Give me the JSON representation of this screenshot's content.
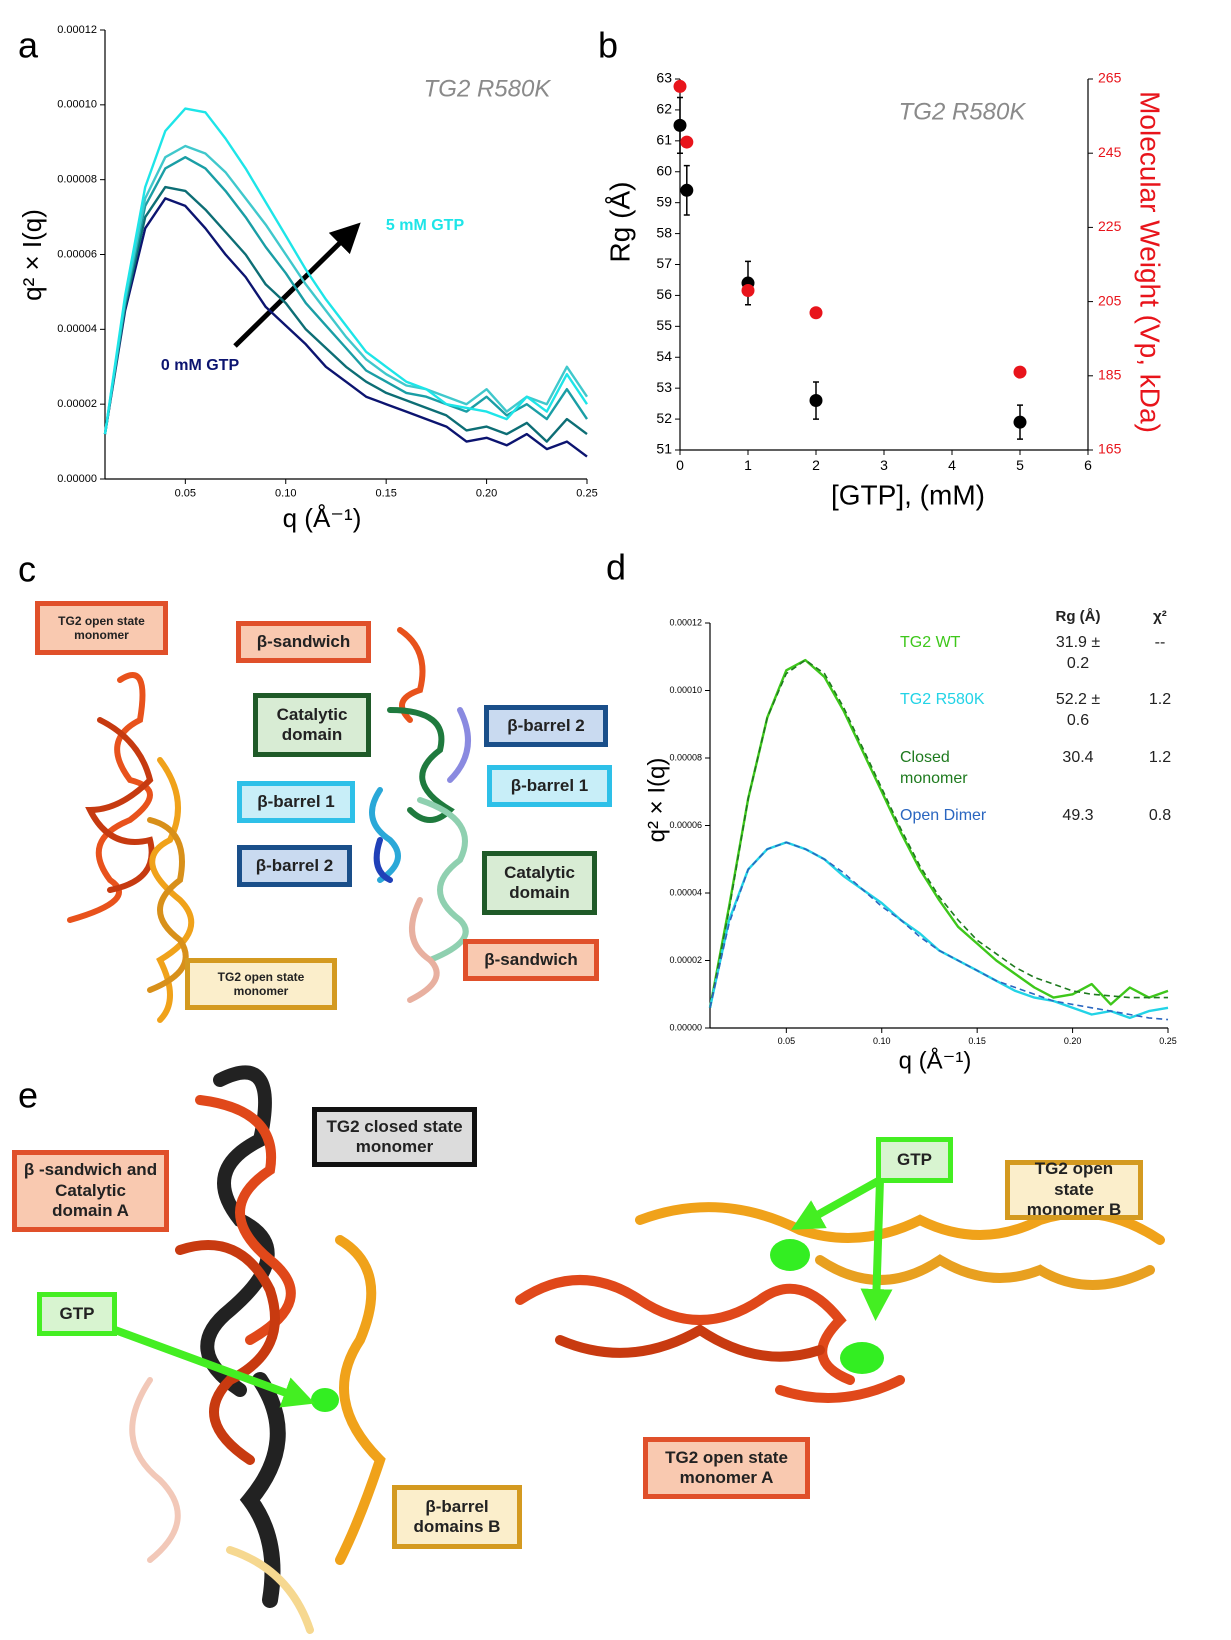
{
  "panel_labels": [
    "a",
    "b",
    "c",
    "d",
    "e"
  ],
  "chart_data": [
    {
      "type": "line",
      "x_label": "q (Å⁻¹)",
      "y_label": "q² × I(q)",
      "annotations": [
        "TG2 R580K",
        "5 mM GTP",
        "0 mM GTP"
      ],
      "x": [
        0.01,
        0.02,
        0.03,
        0.04,
        0.05,
        0.06,
        0.07,
        0.08,
        0.09,
        0.1,
        0.11,
        0.12,
        0.13,
        0.14,
        0.15,
        0.16,
        0.17,
        0.18,
        0.19,
        0.2,
        0.21,
        0.22,
        0.23,
        0.24,
        0.25
      ],
      "series": [
        {
          "color": "#0c1470",
          "values": [
            1.2e-05,
            4.5e-05,
            6.7e-05,
            7.5e-05,
            7.3e-05,
            6.7e-05,
            6e-05,
            5.4e-05,
            4.6e-05,
            4.1e-05,
            3.6e-05,
            3e-05,
            2.6e-05,
            2.2e-05,
            2e-05,
            1.8e-05,
            1.6e-05,
            1.4e-05,
            1e-05,
            1.1e-05,
            9e-06,
            1.2e-05,
            8e-06,
            1e-05,
            6e-06
          ]
        },
        {
          "color": "#0d6e75",
          "values": [
            1.2e-05,
            4.6e-05,
            7e-05,
            7.8e-05,
            7.7e-05,
            7.2e-05,
            6.6e-05,
            6e-05,
            5.2e-05,
            4.7e-05,
            4e-05,
            3.5e-05,
            3e-05,
            2.6e-05,
            2.3e-05,
            2.1e-05,
            1.9e-05,
            1.7e-05,
            1.3e-05,
            1.4e-05,
            1.2e-05,
            1.5e-05,
            1e-05,
            1.6e-05,
            1.2e-05
          ]
        },
        {
          "color": "#1a9ea5",
          "values": [
            1.2e-05,
            4.7e-05,
            7.3e-05,
            8.3e-05,
            8.6e-05,
            8.3e-05,
            7.7e-05,
            7e-05,
            6.2e-05,
            5.5e-05,
            4.7e-05,
            4.1e-05,
            3.5e-05,
            2.9e-05,
            2.6e-05,
            2.3e-05,
            2.2e-05,
            2e-05,
            1.8e-05,
            2.2e-05,
            1.7e-05,
            2e-05,
            1.6e-05,
            2.4e-05,
            1.6e-05
          ]
        },
        {
          "color": "#40c8cc",
          "values": [
            1.2e-05,
            4.8e-05,
            7.5e-05,
            8.6e-05,
            8.9e-05,
            8.7e-05,
            8.2e-05,
            7.5e-05,
            6.8e-05,
            6e-05,
            5.2e-05,
            4.5e-05,
            3.8e-05,
            3.2e-05,
            2.8e-05,
            2.5e-05,
            2.4e-05,
            2.2e-05,
            2e-05,
            2.4e-05,
            1.8e-05,
            2.2e-05,
            2e-05,
            3e-05,
            2.2e-05
          ]
        },
        {
          "color": "#1ee5e8",
          "values": [
            1.2e-05,
            4.9e-05,
            7.8e-05,
            9.3e-05,
            9.9e-05,
            9.8e-05,
            9.1e-05,
            8.3e-05,
            7.4e-05,
            6.5e-05,
            5.6e-05,
            4.8e-05,
            4.1e-05,
            3.4e-05,
            3e-05,
            2.6e-05,
            2.4e-05,
            2e-05,
            1.9e-05,
            1.8e-05,
            1.6e-05,
            2.2e-05,
            1.8e-05,
            2.8e-05,
            2e-05
          ]
        }
      ],
      "xlim": [
        0.01,
        0.25
      ],
      "xticks": [
        0.05,
        {
          "value": 0.1,
          "label": "0.10"
        },
        0.15,
        {
          "value": 0.2,
          "label": "0.20"
        },
        0.25
      ],
      "ylim": [
        0,
        0.00012
      ],
      "yticks": [
        {
          "value": 0,
          "label": "0.00000"
        },
        {
          "value": 2e-05,
          "label": "0.00002"
        },
        {
          "value": 4e-05,
          "label": "0.00004"
        },
        {
          "value": 6e-05,
          "label": "0.00006"
        },
        {
          "value": 8e-05,
          "label": "0.00008"
        },
        {
          "value": 0.0001,
          "label": "0.00010"
        },
        {
          "value": 0.00012,
          "label": "0.00012"
        }
      ]
    },
    {
      "type": "scatter",
      "x_label": "[GTP], (mM)",
      "y_label": "Rg (Å)",
      "y2_label": "Molecular Weight (Vp, kDa)",
      "annotations": [
        "TG2 R580K"
      ],
      "x": [
        0,
        0.1,
        1,
        2,
        5
      ],
      "series": [
        {
          "color": "#000000",
          "values": [
            61.5,
            59.4,
            56.4,
            52.6,
            51.9
          ],
          "errors": [
            0.9,
            0.8,
            0.7,
            0.6,
            0.55
          ]
        },
        {
          "color": "#e8141b",
          "axis": "y2",
          "values": [
            263,
            248,
            208,
            202,
            186
          ]
        }
      ],
      "xlim": [
        0,
        6
      ],
      "xticks": [
        0,
        1,
        2,
        3,
        4,
        5,
        6
      ],
      "ylim": [
        51,
        63
      ],
      "yticks": [
        51,
        52,
        53,
        54,
        55,
        56,
        57,
        58,
        59,
        60,
        61,
        62,
        63
      ],
      "y2lim": [
        165,
        265
      ],
      "y2ticks": [
        165,
        185,
        205,
        225,
        245,
        265
      ]
    },
    {
      "type": "line",
      "x_label": "q (Å⁻¹)",
      "y_label": "q² × I(q)",
      "x": [
        0.01,
        0.02,
        0.03,
        0.04,
        0.05,
        0.06,
        0.07,
        0.08,
        0.09,
        0.1,
        0.11,
        0.12,
        0.13,
        0.14,
        0.15,
        0.16,
        0.17,
        0.18,
        0.19,
        0.2,
        0.21,
        0.22,
        0.23,
        0.24,
        0.25
      ],
      "series": [
        {
          "name": "TG2 WT",
          "color": "#3ec71b",
          "values": [
            6e-06,
            3.6e-05,
            6.8e-05,
            9.2e-05,
            0.000106,
            0.000109,
            0.000104,
            9.4e-05,
            8.2e-05,
            7e-05,
            5.8e-05,
            4.7e-05,
            3.8e-05,
            3e-05,
            2.5e-05,
            2e-05,
            1.6e-05,
            1.2e-05,
            9e-06,
            1e-05,
            1.3e-05,
            7e-06,
            1.2e-05,
            9e-06,
            1.1e-05
          ]
        },
        {
          "name": "TG2 R580K",
          "color": "#22d3e6",
          "values": [
            6e-06,
            3.2e-05,
            4.7e-05,
            5.3e-05,
            5.5e-05,
            5.3e-05,
            5e-05,
            4.5e-05,
            4.1e-05,
            3.7e-05,
            3.2e-05,
            2.8e-05,
            2.3e-05,
            2e-05,
            1.7e-05,
            1.4e-05,
            1.1e-05,
            9e-06,
            8e-06,
            6e-06,
            4e-06,
            5e-06,
            3e-06,
            5e-06,
            6e-06
          ]
        },
        {
          "name": "Closed monomer",
          "color": "#1e7a1e",
          "style": "dashed",
          "values": [
            6e-06,
            3.5e-05,
            6.8e-05,
            9.2e-05,
            0.000105,
            0.000109,
            0.000105,
            9.5e-05,
            8.3e-05,
            7.1e-05,
            5.9e-05,
            4.8e-05,
            3.9e-05,
            3.2e-05,
            2.6e-05,
            2.2e-05,
            1.8e-05,
            1.5e-05,
            1.3e-05,
            1.1e-05,
            1e-05,
            9.5e-06,
            9e-06,
            9e-06,
            9e-06
          ]
        },
        {
          "name": "Open Dimer",
          "color": "#2a66c0",
          "style": "dashed",
          "values": [
            6e-06,
            3.1e-05,
            4.7e-05,
            5.3e-05,
            5.5e-05,
            5.3e-05,
            5e-05,
            4.6e-05,
            4.1e-05,
            3.6e-05,
            3.2e-05,
            2.7e-05,
            2.3e-05,
            2e-05,
            1.7e-05,
            1.4e-05,
            1.2e-05,
            1e-05,
            8e-06,
            7e-06,
            6e-06,
            5e-06,
            4e-06,
            3e-06,
            2.5e-06
          ]
        }
      ],
      "table": {
        "columns": [
          "Rg (Å)",
          "χ²"
        ],
        "rows": [
          [
            "31.9 ± 0.2",
            "--"
          ],
          [
            "52.2 ± 0.6",
            "1.2"
          ],
          [
            "30.4",
            "1.2"
          ],
          [
            "49.3",
            "0.8"
          ]
        ]
      },
      "xlim": [
        0.01,
        0.25
      ],
      "xticks": [
        0.05,
        {
          "value": 0.1,
          "label": "0.10"
        },
        0.15,
        {
          "value": 0.2,
          "label": "0.20"
        },
        0.25
      ],
      "ylim": [
        0,
        0.00012
      ],
      "yticks": [
        {
          "value": 0,
          "label": "0.00000"
        },
        {
          "value": 2e-05,
          "label": "0.00002"
        },
        {
          "value": 4e-05,
          "label": "0.00004"
        },
        {
          "value": 6e-05,
          "label": "0.00006"
        },
        {
          "value": 8e-05,
          "label": "0.00008"
        },
        {
          "value": 0.0001,
          "label": "0.00010"
        },
        {
          "value": 0.00012,
          "label": "0.00012"
        }
      ]
    }
  ],
  "panel_c": {
    "labels": [
      "TG2 open state monomer",
      "β-sandwich",
      "Catalytic domain",
      "β-barrel 2",
      "β-barrel 1",
      "β-barrel 1",
      "β-barrel 2",
      "Catalytic domain",
      "β-sandwich",
      "TG2 open state monomer"
    ]
  },
  "panel_e": {
    "labels": [
      "TG2 closed state monomer",
      "β -sandwich and Catalytic domain A",
      "GTP",
      "β-barrel domains B",
      "GTP",
      "TG2 open state monomer B",
      "TG2 open state monomer A"
    ]
  }
}
